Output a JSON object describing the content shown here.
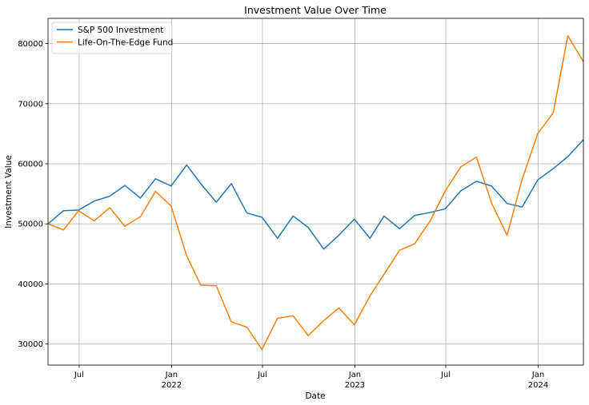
{
  "chart_data": {
    "type": "line",
    "title": "Investment Value Over Time",
    "xlabel": "Date",
    "ylabel": "Investment Value",
    "ylim": [
      26500,
      84200
    ],
    "xlim": [
      "2021-04-30",
      "2024-03-31"
    ],
    "grid": true,
    "legend_position": "top-left",
    "yticks": [
      30000,
      40000,
      50000,
      60000,
      70000,
      80000
    ],
    "xticks": [
      {
        "date": "2021-07-01",
        "label": "Jul",
        "sublabel": ""
      },
      {
        "date": "2022-01-01",
        "label": "Jan",
        "sublabel": "2022"
      },
      {
        "date": "2022-07-01",
        "label": "Jul",
        "sublabel": ""
      },
      {
        "date": "2023-01-01",
        "label": "Jan",
        "sublabel": "2023"
      },
      {
        "date": "2023-07-01",
        "label": "Jul",
        "sublabel": ""
      },
      {
        "date": "2024-01-01",
        "label": "Jan",
        "sublabel": "2024"
      }
    ],
    "x": [
      "2021-04-30",
      "2021-05-31",
      "2021-06-30",
      "2021-07-31",
      "2021-08-31",
      "2021-09-30",
      "2021-10-31",
      "2021-11-30",
      "2021-12-31",
      "2022-01-31",
      "2022-02-28",
      "2022-03-31",
      "2022-04-30",
      "2022-05-31",
      "2022-06-30",
      "2022-07-31",
      "2022-08-31",
      "2022-09-30",
      "2022-10-31",
      "2022-11-30",
      "2022-12-31",
      "2023-01-31",
      "2023-02-28",
      "2023-03-31",
      "2023-04-30",
      "2023-05-31",
      "2023-06-30",
      "2023-07-31",
      "2023-08-31",
      "2023-09-30",
      "2023-10-31",
      "2023-11-30",
      "2023-12-31",
      "2024-01-31",
      "2024-02-29",
      "2024-03-31"
    ],
    "series": [
      {
        "name": "S&P 500 Investment",
        "color": "#1f77b4",
        "values": [
          50000,
          52200,
          52300,
          53800,
          54600,
          56400,
          54300,
          57500,
          56300,
          59800,
          56700,
          53600,
          56700,
          51800,
          51100,
          47600,
          51300,
          49400,
          45800,
          48100,
          50800,
          47600,
          51300,
          49200,
          51400,
          51900,
          52500,
          55500,
          57100,
          56300,
          53400,
          52800,
          57300,
          59200,
          61200,
          64000
        ]
      },
      {
        "name": "Life-On-The-Edge Fund",
        "color": "#ff7f0e",
        "values": [
          50000,
          49000,
          52200,
          50500,
          52700,
          49600,
          51200,
          55400,
          53000,
          44700,
          39800,
          39700,
          33700,
          32800,
          29100,
          34300,
          34700,
          31400,
          33900,
          36000,
          33200,
          38000,
          41600,
          45600,
          46700,
          50500,
          55500,
          59500,
          61100,
          53500,
          48100,
          57400,
          65000,
          68500,
          81300,
          77000
        ]
      }
    ]
  }
}
